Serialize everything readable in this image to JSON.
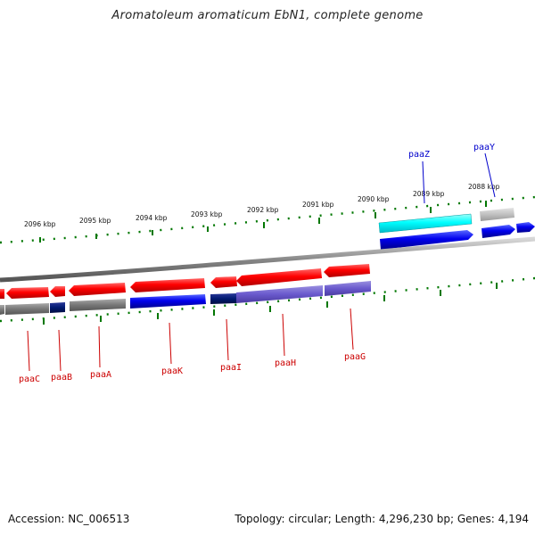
{
  "title": "Aromatoleum aromaticum EbN1, complete genome",
  "footer": {
    "accession": "Accession: NC_006513",
    "summary": "Topology: circular; Length: 4,296,230 bp; Genes: 4,194"
  },
  "colors": {
    "forward_gene": "#e00000",
    "forward_cds": "#0000dd",
    "reverse_gene": "#e00000",
    "reverse_cds_dark": "#001a7a",
    "reverse_cds_blue": "#0010dd",
    "reverse_cds_purple": "#6a5acd",
    "pseudo_grey": "#777777",
    "light_grey": "#bbbbbb",
    "cyan": "#00ffff",
    "tick_green": "#007700",
    "label_red": "#cc0000",
    "label_blue": "#0000cc"
  },
  "ticks": [
    {
      "label": "2088 kbp"
    },
    {
      "label": "2089 kbp"
    },
    {
      "label": "2090 kbp"
    },
    {
      "label": "2091 kbp"
    },
    {
      "label": "2092 kbp"
    },
    {
      "label": "2093 kbp"
    },
    {
      "label": "2094 kbp"
    },
    {
      "label": "2095 kbp"
    },
    {
      "label": "2096 kbp"
    }
  ],
  "genes_top": [
    {
      "name": "paaZ"
    },
    {
      "name": "paaY"
    }
  ],
  "genes_bottom": [
    {
      "name": "paaC"
    },
    {
      "name": "paaB"
    },
    {
      "name": "paaA"
    },
    {
      "name": "paaK"
    },
    {
      "name": "paaI"
    },
    {
      "name": "paaH"
    },
    {
      "name": "paaG"
    }
  ]
}
